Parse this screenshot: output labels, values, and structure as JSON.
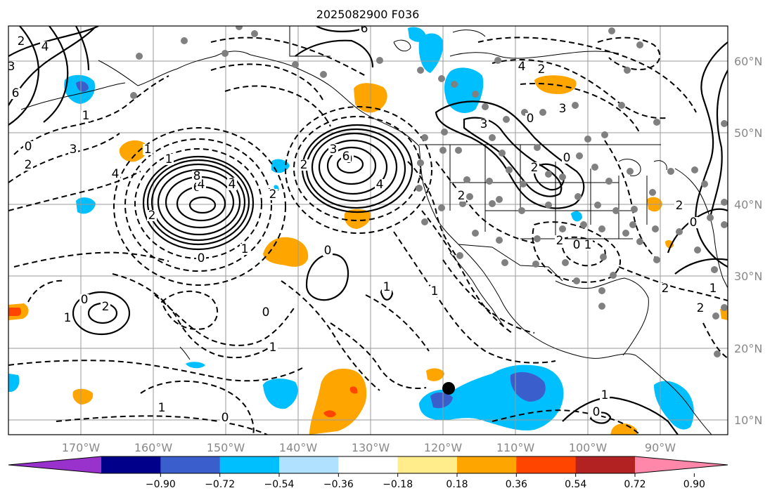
{
  "title": "2025082900 F036",
  "lon_labels": [
    "170°W",
    "160°W",
    "150°W",
    "140°W",
    "130°W",
    "120°W",
    "110°W",
    "100°W",
    "90°W"
  ],
  "lat_labels": [
    "60°N",
    "50°N",
    "40°N",
    "30°N",
    "20°N",
    "10°N"
  ],
  "colorbar": {
    "ticks": [
      "−0.90",
      "−0.72",
      "−0.54",
      "−0.36",
      "−0.18",
      "0.18",
      "0.36",
      "0.54",
      "0.72",
      "0.90"
    ],
    "colors": [
      "#9932cc",
      "#00008b",
      "#3a5fcd",
      "#00bfff",
      "#b0e2ff",
      "#ffffff",
      "#ffec8b",
      "#ffa500",
      "#ff4500",
      "#b22222",
      "#ff88aa"
    ]
  },
  "contour_labels": [
    "2",
    "4",
    "3",
    "6",
    "1",
    "0",
    "4",
    "3",
    "2",
    "1",
    "6",
    "4",
    "2",
    "1",
    "2",
    "0",
    "0",
    "3",
    "2",
    "4",
    "6",
    "8",
    "4",
    "2",
    "1",
    "0",
    "6",
    "4",
    "2",
    "3",
    "0",
    "0",
    "1",
    "2",
    "3",
    "2",
    "1",
    "2",
    "0",
    "1",
    "2",
    "0",
    "1",
    "0",
    "1",
    "2",
    "1",
    "0",
    "1",
    "2",
    "0",
    "2",
    "1",
    "0"
  ],
  "colors": {
    "gray_label": "#888888",
    "grid": "#9a9a9a",
    "station": "#808080",
    "storm": "#000000"
  }
}
